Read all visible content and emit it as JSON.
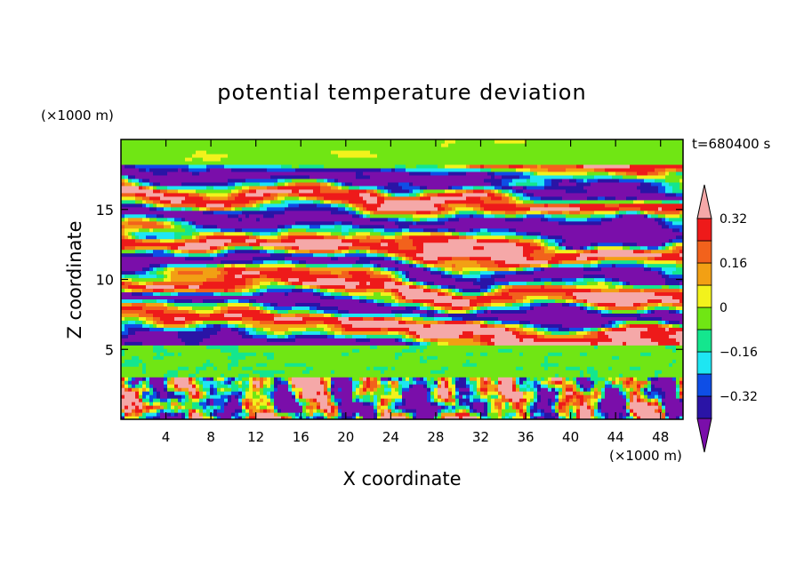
{
  "chart_data": {
    "type": "heatmap",
    "title": "potential temperature deviation",
    "xlabel": "X coordinate",
    "ylabel": "Z coordinate",
    "x_unit": "(×1000 m)",
    "y_unit": "(×1000 m)",
    "annotation": "t=680400 s",
    "xlim": [
      0,
      50
    ],
    "ylim": [
      0,
      20
    ],
    "x_ticks": [
      4,
      8,
      12,
      16,
      20,
      24,
      28,
      32,
      36,
      40,
      44,
      48
    ],
    "y_ticks": [
      5,
      10,
      15
    ],
    "colorbar": {
      "levels": [
        -0.4,
        -0.32,
        -0.24,
        -0.16,
        -0.08,
        0,
        0.08,
        0.16,
        0.24,
        0.32,
        0.4
      ],
      "labeled_levels": [
        "0.32",
        "0.16",
        "0",
        "−0.16",
        "−0.32"
      ],
      "colors": [
        "#7a0eaa",
        "#2a14a6",
        "#0e4ee6",
        "#1ee6f2",
        "#14e68e",
        "#70e614",
        "#f2f21c",
        "#f2a014",
        "#f2621c",
        "#ee1a1a",
        "#f5a8a8"
      ],
      "extend": "both"
    }
  }
}
